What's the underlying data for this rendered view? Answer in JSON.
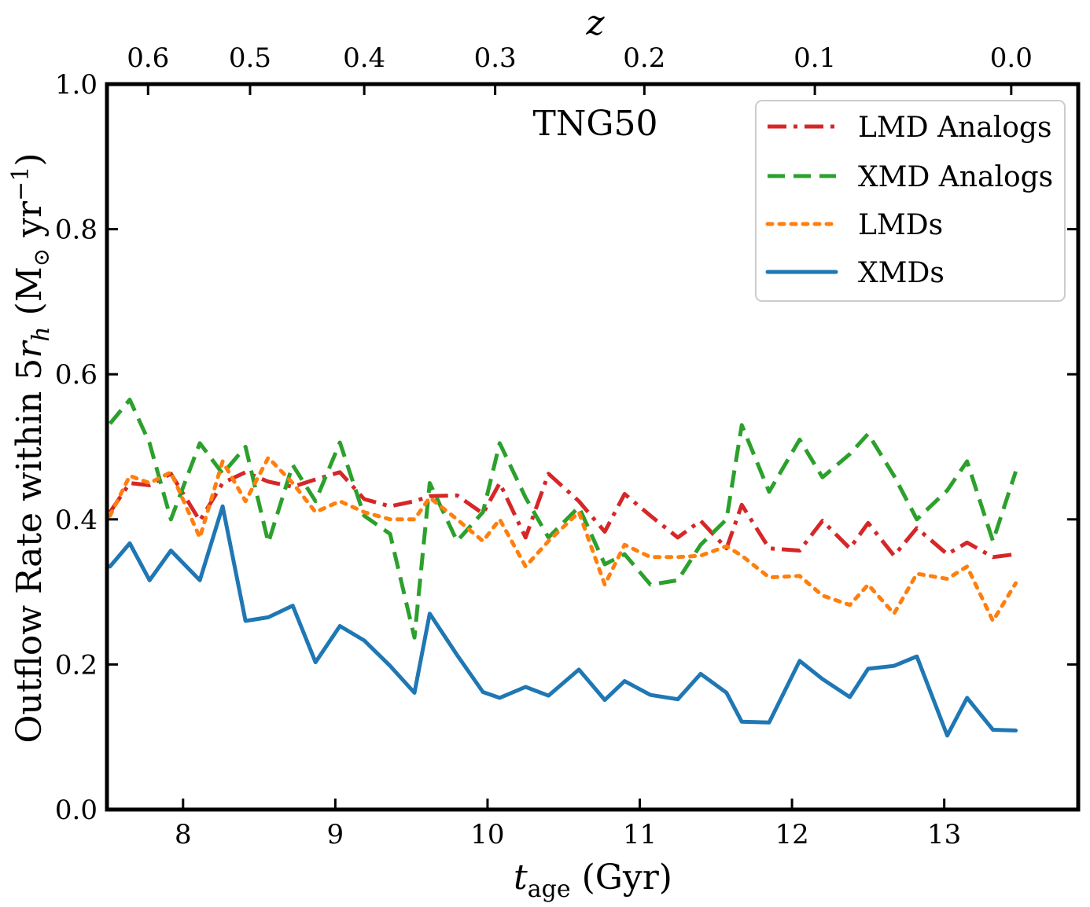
{
  "chart_data": {
    "type": "line",
    "title": "",
    "annotation": "TNG50",
    "xlabel_main": "t",
    "xlabel_sub": "age",
    "xlabel_unit": " (Gyr)",
    "ylabel_main": "Outflow Rate within 5",
    "ylabel_r": "r",
    "ylabel_r_sub": "h",
    "ylabel_unit_open": " (M",
    "ylabel_unit_sun": "⊙",
    "ylabel_unit_yr": " yr",
    "ylabel_unit_exp": "−1",
    "ylabel_unit_close": ")",
    "top_label": "z",
    "xlim": [
      7.5,
      13.88
    ],
    "ylim": [
      0.0,
      1.0
    ],
    "x_ticks": [
      8,
      9,
      10,
      11,
      12,
      13
    ],
    "x_tick_labels": [
      "8",
      "9",
      "10",
      "11",
      "12",
      "13"
    ],
    "y_ticks": [
      0.0,
      0.2,
      0.4,
      0.6,
      0.8,
      1.0
    ],
    "y_tick_labels": [
      "0.0",
      "0.2",
      "0.4",
      "0.6",
      "0.8",
      "1.0"
    ],
    "top_ticks": [
      7.77,
      8.44,
      9.19,
      10.05,
      11.03,
      12.15,
      13.44
    ],
    "top_tick_labels": [
      "0.6",
      "0.5",
      "0.4",
      "0.3",
      "0.2",
      "0.1",
      "0.0"
    ],
    "legend_position": "top-right",
    "x": [
      7.52,
      7.65,
      7.78,
      7.92,
      8.11,
      8.26,
      8.41,
      8.56,
      8.72,
      8.87,
      9.03,
      9.19,
      9.36,
      9.52,
      9.62,
      9.8,
      9.97,
      10.08,
      10.25,
      10.4,
      10.6,
      10.77,
      10.9,
      11.07,
      11.25,
      11.4,
      11.57,
      11.67,
      11.85,
      12.05,
      12.2,
      12.38,
      12.5,
      12.67,
      12.82,
      13.02,
      13.15,
      13.32,
      13.47
    ],
    "series": [
      {
        "name": "LMD Analogs",
        "color": "#d62728",
        "style": "dashdot",
        "values": [
          0.41,
          0.45,
          0.447,
          0.463,
          0.398,
          0.45,
          0.465,
          0.452,
          0.445,
          0.455,
          0.465,
          0.428,
          0.418,
          0.425,
          0.432,
          0.433,
          0.408,
          0.45,
          0.375,
          0.463,
          0.425,
          0.383,
          0.435,
          0.405,
          0.375,
          0.398,
          0.36,
          0.42,
          0.36,
          0.357,
          0.398,
          0.36,
          0.395,
          0.35,
          0.388,
          0.352,
          0.368,
          0.348,
          0.352
        ]
      },
      {
        "name": "XMD Analogs",
        "color": "#2ca02c",
        "style": "dashed",
        "values": [
          0.532,
          0.565,
          0.505,
          0.4,
          0.505,
          0.463,
          0.5,
          0.368,
          0.475,
          0.425,
          0.506,
          0.405,
          0.38,
          0.237,
          0.45,
          0.37,
          0.41,
          0.505,
          0.43,
          0.375,
          0.417,
          0.338,
          0.352,
          0.31,
          0.316,
          0.365,
          0.4,
          0.53,
          0.438,
          0.51,
          0.458,
          0.49,
          0.518,
          0.46,
          0.4,
          0.44,
          0.48,
          0.37,
          0.466
        ]
      },
      {
        "name": "LMDs",
        "color": "#ff7f0e",
        "style": "dotted",
        "values": [
          0.405,
          0.46,
          0.45,
          0.465,
          0.375,
          0.48,
          0.425,
          0.485,
          0.45,
          0.41,
          0.425,
          0.41,
          0.4,
          0.4,
          0.43,
          0.4,
          0.37,
          0.4,
          0.335,
          0.37,
          0.41,
          0.31,
          0.365,
          0.348,
          0.348,
          0.35,
          0.363,
          0.35,
          0.32,
          0.322,
          0.295,
          0.282,
          0.31,
          0.27,
          0.325,
          0.318,
          0.335,
          0.26,
          0.312
        ]
      },
      {
        "name": "XMDs",
        "color": "#1f77b4",
        "style": "solid",
        "values": [
          0.335,
          0.367,
          0.316,
          0.357,
          0.316,
          0.418,
          0.26,
          0.265,
          0.281,
          0.203,
          0.253,
          0.233,
          0.198,
          0.161,
          0.27,
          0.213,
          0.162,
          0.154,
          0.169,
          0.157,
          0.193,
          0.151,
          0.177,
          0.158,
          0.152,
          0.187,
          0.161,
          0.121,
          0.12,
          0.205,
          0.18,
          0.155,
          0.194,
          0.198,
          0.211,
          0.102,
          0.154,
          0.11,
          0.109
        ]
      }
    ]
  }
}
